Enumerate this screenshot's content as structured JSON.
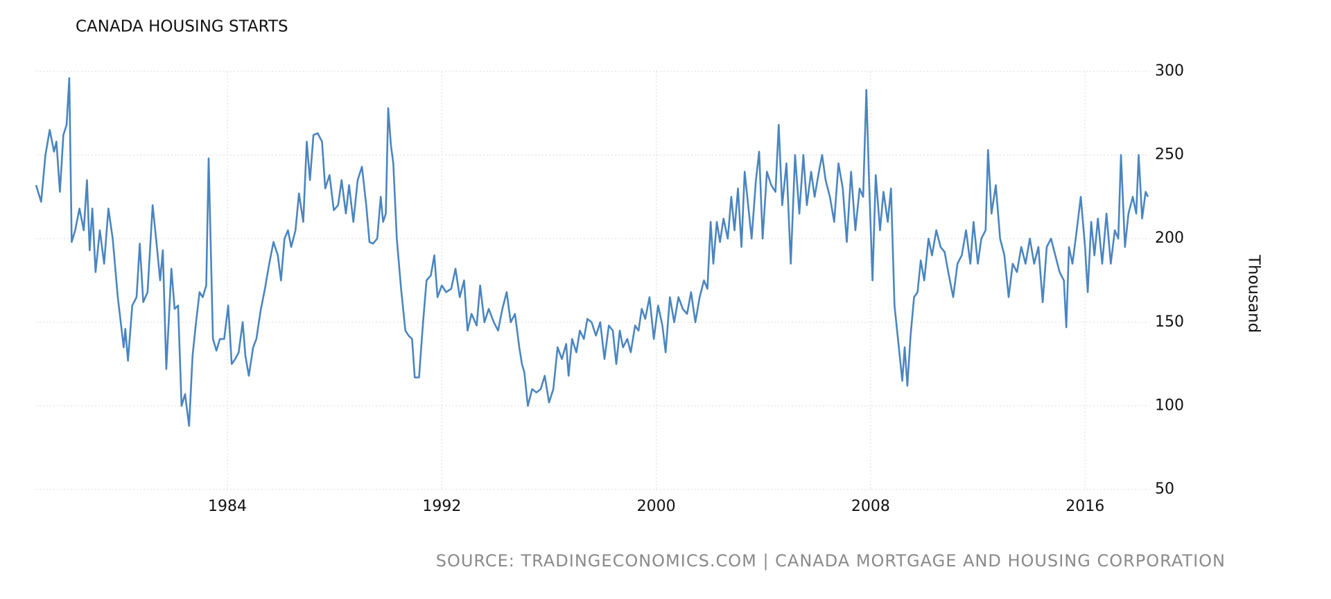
{
  "chart_data": {
    "type": "line",
    "title": "CANADA HOUSING STARTS",
    "y_label": "Thousand",
    "source": "SOURCE: TRADINGECONOMICS.COM | CANADA MORTGAGE AND HOUSING CORPORATION",
    "color": "#4a85bf",
    "grid": true,
    "y_axis_side": "right",
    "xlim": [
      1976.86,
      2018.4
    ],
    "xticks": [
      1984,
      1992,
      2000,
      2008,
      2016
    ],
    "ylim": [
      50,
      300
    ],
    "yticks": [
      50,
      100,
      150,
      200,
      250,
      300
    ],
    "x": [
      1976.86,
      1977.05,
      1977.21,
      1977.37,
      1977.53,
      1977.62,
      1977.75,
      1977.88,
      1978.0,
      1978.1,
      1978.19,
      1978.32,
      1978.48,
      1978.64,
      1978.76,
      1978.86,
      1978.96,
      1979.08,
      1979.24,
      1979.4,
      1979.56,
      1979.72,
      1979.91,
      1980.13,
      1980.19,
      1980.29,
      1980.45,
      1980.61,
      1980.73,
      1980.86,
      1981.02,
      1981.21,
      1981.37,
      1981.49,
      1981.59,
      1981.72,
      1981.91,
      1982.03,
      1982.16,
      1982.29,
      1982.42,
      1982.57,
      1982.7,
      1982.83,
      1982.96,
      1983.08,
      1983.21,
      1983.3,
      1983.46,
      1983.59,
      1983.72,
      1983.88,
      1984.03,
      1984.16,
      1984.29,
      1984.42,
      1984.57,
      1984.67,
      1984.8,
      1984.96,
      1985.08,
      1985.24,
      1985.4,
      1985.56,
      1985.72,
      1985.88,
      1986.0,
      1986.13,
      1986.26,
      1986.38,
      1986.54,
      1986.67,
      1986.83,
      1986.96,
      1987.08,
      1987.21,
      1987.37,
      1987.53,
      1987.65,
      1987.81,
      1987.97,
      1988.13,
      1988.26,
      1988.42,
      1988.54,
      1988.7,
      1988.86,
      1989.02,
      1989.18,
      1989.3,
      1989.43,
      1989.59,
      1989.72,
      1989.81,
      1989.91,
      1990.0,
      1990.1,
      1990.19,
      1990.32,
      1990.48,
      1990.64,
      1990.76,
      1990.89,
      1990.99,
      1991.15,
      1991.3,
      1991.43,
      1991.59,
      1991.72,
      1991.84,
      1992.0,
      1992.16,
      1992.35,
      1992.51,
      1992.67,
      1992.83,
      1992.96,
      1993.11,
      1993.3,
      1993.43,
      1993.59,
      1993.75,
      1993.94,
      1994.1,
      1994.26,
      1994.42,
      1994.57,
      1994.73,
      1994.89,
      1994.99,
      1995.08,
      1995.21,
      1995.37,
      1995.53,
      1995.69,
      1995.84,
      1996.0,
      1996.16,
      1996.32,
      1996.48,
      1996.64,
      1996.73,
      1996.86,
      1997.02,
      1997.15,
      1997.3,
      1997.43,
      1997.59,
      1997.75,
      1997.91,
      1998.07,
      1998.23,
      1998.38,
      1998.51,
      1998.64,
      1998.76,
      1998.92,
      1999.05,
      1999.21,
      1999.34,
      1999.46,
      1999.59,
      1999.75,
      1999.91,
      2000.07,
      2000.23,
      2000.35,
      2000.51,
      2000.67,
      2000.83,
      2000.99,
      2001.15,
      2001.3,
      2001.46,
      2001.62,
      2001.78,
      2001.91,
      2002.03,
      2002.13,
      2002.26,
      2002.38,
      2002.51,
      2002.67,
      2002.8,
      2002.92,
      2003.05,
      2003.18,
      2003.3,
      2003.43,
      2003.56,
      2003.72,
      2003.84,
      2003.97,
      2004.13,
      2004.29,
      2004.45,
      2004.57,
      2004.7,
      2004.86,
      2005.02,
      2005.18,
      2005.34,
      2005.49,
      2005.62,
      2005.78,
      2005.91,
      2006.07,
      2006.19,
      2006.32,
      2006.48,
      2006.64,
      2006.8,
      2006.96,
      2007.11,
      2007.27,
      2007.43,
      2007.59,
      2007.72,
      2007.84,
      2007.94,
      2008.07,
      2008.19,
      2008.35,
      2008.48,
      2008.64,
      2008.76,
      2008.89,
      2009.02,
      2009.18,
      2009.27,
      2009.37,
      2009.49,
      2009.62,
      2009.75,
      2009.87,
      2010.0,
      2010.16,
      2010.29,
      2010.45,
      2010.61,
      2010.76,
      2010.92,
      2011.08,
      2011.24,
      2011.4,
      2011.56,
      2011.72,
      2011.84,
      2012.0,
      2012.13,
      2012.29,
      2012.38,
      2012.51,
      2012.67,
      2012.83,
      2012.99,
      2013.15,
      2013.3,
      2013.46,
      2013.62,
      2013.78,
      2013.94,
      2014.1,
      2014.26,
      2014.42,
      2014.57,
      2014.73,
      2014.89,
      2015.05,
      2015.21,
      2015.3,
      2015.4,
      2015.53,
      2015.69,
      2015.84,
      2016.0,
      2016.1,
      2016.23,
      2016.35,
      2016.48,
      2016.64,
      2016.8,
      2016.96,
      2017.11,
      2017.24,
      2017.34,
      2017.49,
      2017.62,
      2017.78,
      2017.91,
      2018.0,
      2018.13,
      2018.26,
      2018.35
    ],
    "values": [
      232,
      222,
      250,
      265,
      252,
      258,
      228,
      262,
      268,
      296,
      198,
      205,
      218,
      205,
      235,
      193,
      218,
      180,
      205,
      185,
      218,
      200,
      165,
      135,
      146,
      127,
      160,
      165,
      197,
      162,
      168,
      220,
      195,
      175,
      193,
      122,
      182,
      158,
      160,
      100,
      107,
      88,
      130,
      150,
      168,
      165,
      172,
      248,
      140,
      133,
      140,
      140,
      160,
      125,
      128,
      132,
      150,
      130,
      118,
      135,
      140,
      157,
      170,
      185,
      198,
      190,
      175,
      200,
      205,
      195,
      205,
      227,
      210,
      258,
      235,
      262,
      263,
      258,
      230,
      238,
      217,
      220,
      235,
      215,
      232,
      210,
      235,
      243,
      220,
      198,
      197,
      200,
      225,
      210,
      215,
      278,
      256,
      245,
      200,
      170,
      145,
      142,
      140,
      117,
      117,
      150,
      175,
      178,
      190,
      165,
      172,
      168,
      170,
      182,
      165,
      175,
      145,
      155,
      148,
      172,
      150,
      158,
      150,
      145,
      158,
      168,
      150,
      155,
      135,
      125,
      120,
      100,
      110,
      108,
      110,
      118,
      102,
      110,
      135,
      128,
      137,
      118,
      140,
      132,
      145,
      140,
      152,
      150,
      142,
      150,
      128,
      148,
      145,
      125,
      145,
      135,
      140,
      132,
      148,
      145,
      158,
      152,
      165,
      140,
      160,
      148,
      132,
      165,
      150,
      165,
      158,
      155,
      168,
      150,
      165,
      175,
      170,
      210,
      185,
      210,
      198,
      212,
      200,
      225,
      205,
      230,
      195,
      240,
      220,
      200,
      235,
      252,
      200,
      240,
      232,
      228,
      268,
      220,
      245,
      185,
      250,
      215,
      250,
      220,
      240,
      225,
      240,
      250,
      235,
      225,
      210,
      245,
      230,
      198,
      240,
      205,
      230,
      225,
      289,
      235,
      175,
      238,
      205,
      228,
      210,
      230,
      160,
      140,
      115,
      135,
      112,
      142,
      165,
      168,
      187,
      175,
      200,
      190,
      205,
      195,
      192,
      178,
      165,
      185,
      190,
      205,
      185,
      210,
      185,
      200,
      205,
      253,
      215,
      232,
      200,
      190,
      165,
      185,
      180,
      195,
      185,
      200,
      185,
      195,
      162,
      195,
      200,
      190,
      180,
      175,
      147,
      195,
      185,
      205,
      225,
      195,
      168,
      210,
      190,
      212,
      185,
      215,
      185,
      205,
      200,
      250,
      195,
      215,
      225,
      215,
      250,
      212,
      228,
      225
    ]
  }
}
